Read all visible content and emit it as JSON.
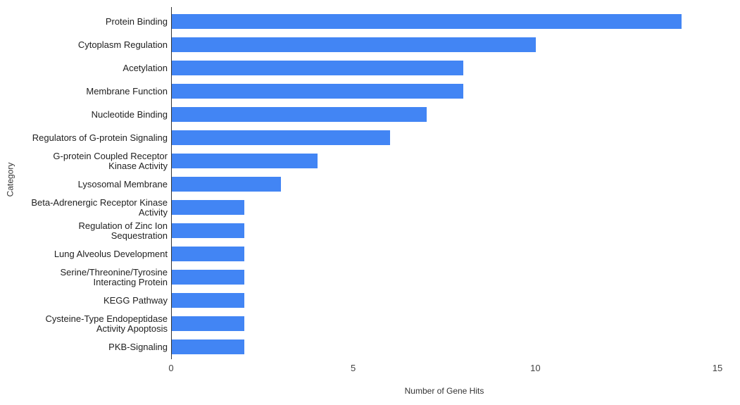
{
  "chart_data": {
    "type": "bar",
    "orientation": "horizontal",
    "title": "",
    "xlabel": "Number of Gene Hits",
    "ylabel": "Category",
    "xlim": [
      0,
      15
    ],
    "xticks": [
      0,
      5,
      10,
      15
    ],
    "grid": false,
    "legend": "none",
    "bar_color": "#4285f4",
    "axis_color": "#333333",
    "background_color": "#ffffff",
    "categories": [
      "Protein Binding",
      "Cytoplasm Regulation",
      "Acetylation",
      "Membrane Function",
      "Nucleotide Binding",
      "Regulators of G-protein Signaling",
      "G-protein Coupled Receptor\nKinase Activity",
      "Lysosomal Membrane",
      "Beta-Adrenergic Receptor Kinase\nActivity",
      "Regulation of Zinc Ion\nSequestration",
      "Lung Alveolus Development",
      "Serine/Threonine/Tyrosine\nInteracting Protein",
      "KEGG Pathway",
      "Cysteine-Type Endopeptidase\nActivity Apoptosis",
      "PKB-Signaling"
    ],
    "values": [
      14,
      10,
      8,
      8,
      7,
      6,
      4,
      3,
      2,
      2,
      2,
      2,
      2,
      2,
      2
    ]
  }
}
